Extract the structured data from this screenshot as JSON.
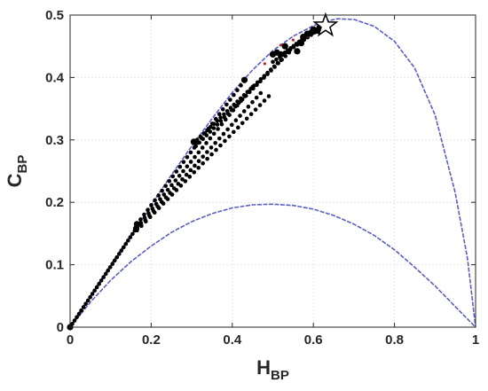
{
  "chart_data": {
    "type": "scatter",
    "xlabel": {
      "main": "H",
      "sub": "BP"
    },
    "ylabel": {
      "main": "C",
      "sub": "BP"
    },
    "xlim": [
      0,
      1
    ],
    "ylim": [
      0,
      0.5
    ],
    "xticks": [
      0,
      0.2,
      0.4,
      0.6,
      0.8,
      1
    ],
    "yticks": [
      0,
      0.1,
      0.2,
      0.3,
      0.4,
      0.5
    ],
    "xtick_labels": [
      "0",
      "0.2",
      "0.4",
      "0.6",
      "0.8",
      "1"
    ],
    "ytick_labels": [
      "0",
      "0.1",
      "0.2",
      "0.3",
      "0.4",
      "0.5"
    ],
    "grid": true,
    "colors": {
      "bound": "#5a5fc0",
      "points": "#000000",
      "axes": "#262626",
      "red_accent": "#cc2222"
    },
    "upper_bound": [
      [
        0,
        0
      ],
      [
        0.05,
        0.05
      ],
      [
        0.1,
        0.1
      ],
      [
        0.15,
        0.148
      ],
      [
        0.2,
        0.196
      ],
      [
        0.25,
        0.244
      ],
      [
        0.3,
        0.29
      ],
      [
        0.35,
        0.334
      ],
      [
        0.4,
        0.376
      ],
      [
        0.45,
        0.412
      ],
      [
        0.5,
        0.443
      ],
      [
        0.55,
        0.466
      ],
      [
        0.6,
        0.483
      ],
      [
        0.63,
        0.49
      ],
      [
        0.66,
        0.494
      ],
      [
        0.7,
        0.493
      ],
      [
        0.75,
        0.482
      ],
      [
        0.8,
        0.458
      ],
      [
        0.85,
        0.415
      ],
      [
        0.9,
        0.34
      ],
      [
        0.95,
        0.215
      ],
      [
        0.98,
        0.11
      ],
      [
        1,
        0
      ]
    ],
    "lower_bound": [
      [
        0,
        0
      ],
      [
        0.05,
        0.04
      ],
      [
        0.1,
        0.075
      ],
      [
        0.15,
        0.105
      ],
      [
        0.2,
        0.13
      ],
      [
        0.25,
        0.152
      ],
      [
        0.3,
        0.169
      ],
      [
        0.35,
        0.182
      ],
      [
        0.4,
        0.191
      ],
      [
        0.45,
        0.196
      ],
      [
        0.5,
        0.197
      ],
      [
        0.55,
        0.195
      ],
      [
        0.6,
        0.189
      ],
      [
        0.65,
        0.179
      ],
      [
        0.7,
        0.165
      ],
      [
        0.75,
        0.147
      ],
      [
        0.8,
        0.124
      ],
      [
        0.85,
        0.096
      ],
      [
        0.9,
        0.066
      ],
      [
        0.95,
        0.033
      ],
      [
        1,
        0
      ]
    ],
    "trajectories": [
      {
        "start": [
          0.165,
          0.165
        ],
        "end": [
          0.43,
          0.395
        ],
        "count": 30
      },
      {
        "start": [
          0.165,
          0.16
        ],
        "end": [
          0.45,
          0.385
        ],
        "count": 30
      },
      {
        "start": [
          0.165,
          0.157
        ],
        "end": [
          0.47,
          0.375
        ],
        "count": 30
      },
      {
        "start": [
          0.165,
          0.155
        ],
        "end": [
          0.49,
          0.37
        ],
        "count": 30
      },
      {
        "start": [
          0.305,
          0.295
        ],
        "end": [
          0.52,
          0.428
        ],
        "count": 26
      },
      {
        "start": [
          0.31,
          0.29
        ],
        "end": [
          0.54,
          0.44
        ],
        "count": 26
      },
      {
        "start": [
          0.5,
          0.425
        ],
        "end": [
          0.62,
          0.48
        ],
        "count": 14
      },
      {
        "start": [
          0.53,
          0.44
        ],
        "end": [
          0.6,
          0.475
        ],
        "count": 10
      },
      {
        "start": [
          0,
          0
        ],
        "end": [
          0.165,
          0.16
        ],
        "count": 30
      }
    ],
    "points": [
      [
        0,
        0
      ],
      [
        0.165,
        0.165
      ],
      [
        0.163,
        0.158
      ],
      [
        0.305,
        0.297
      ],
      [
        0.43,
        0.396
      ],
      [
        0.5,
        0.437
      ],
      [
        0.51,
        0.44
      ],
      [
        0.52,
        0.437
      ],
      [
        0.53,
        0.45
      ],
      [
        0.56,
        0.442
      ],
      [
        0.57,
        0.455
      ],
      [
        0.575,
        0.465
      ],
      [
        0.585,
        0.47
      ],
      [
        0.595,
        0.472
      ],
      [
        0.6,
        0.477
      ],
      [
        0.61,
        0.475
      ],
      [
        0.615,
        0.48
      ],
      [
        0.62,
        0.478
      ]
    ],
    "red_points": [
      [
        0.48,
        0.422
      ],
      [
        0.52,
        0.452
      ],
      [
        0.55,
        0.46
      ],
      [
        0.585,
        0.466
      ]
    ],
    "star": [
      0.63,
      0.483
    ]
  }
}
